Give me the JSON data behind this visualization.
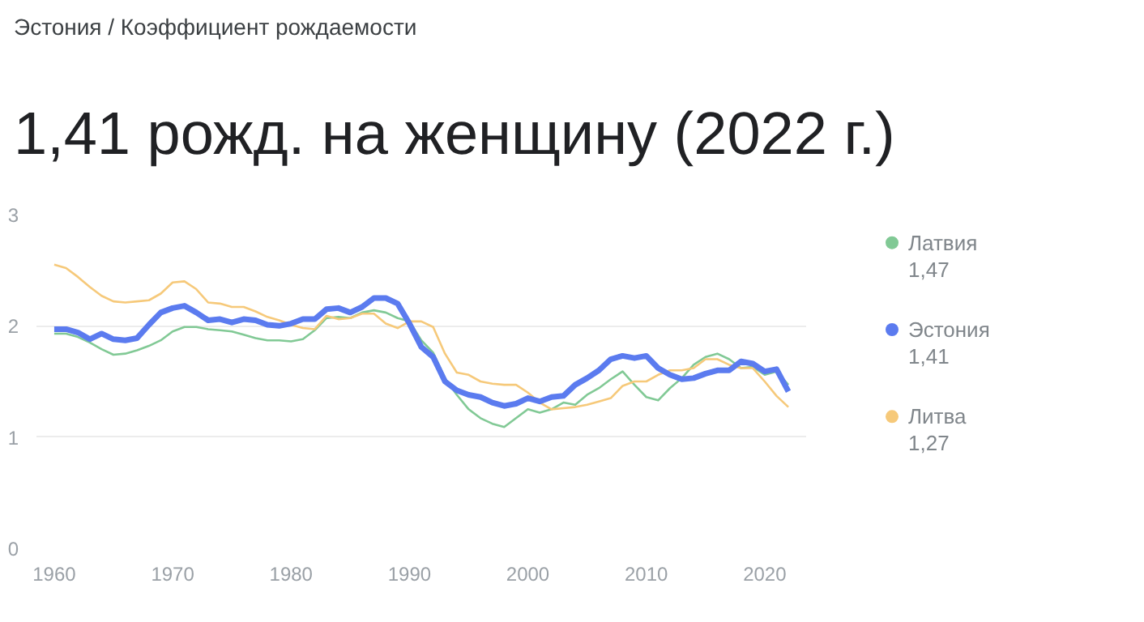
{
  "chart_data": {
    "type": "line",
    "subtitle": "Эстония / Коэффициент рождаемости",
    "title": "1,41 рожд. на женщину (2022 г.)",
    "x": [
      1960,
      1961,
      1962,
      1963,
      1964,
      1965,
      1966,
      1967,
      1968,
      1969,
      1970,
      1971,
      1972,
      1973,
      1974,
      1975,
      1976,
      1977,
      1978,
      1979,
      1980,
      1981,
      1982,
      1983,
      1984,
      1985,
      1986,
      1987,
      1988,
      1989,
      1990,
      1991,
      1992,
      1993,
      1994,
      1995,
      1996,
      1997,
      1998,
      1999,
      2000,
      2001,
      2002,
      2003,
      2004,
      2005,
      2006,
      2007,
      2008,
      2009,
      2010,
      2011,
      2012,
      2013,
      2014,
      2015,
      2016,
      2017,
      2018,
      2019,
      2020,
      2021,
      2022
    ],
    "series": [
      {
        "name": "Латвия",
        "color": "#81c995",
        "values": [
          1.93,
          1.93,
          1.9,
          1.85,
          1.79,
          1.74,
          1.75,
          1.78,
          1.82,
          1.87,
          1.95,
          1.99,
          1.99,
          1.97,
          1.96,
          1.95,
          1.92,
          1.89,
          1.87,
          1.87,
          1.86,
          1.88,
          1.96,
          2.07,
          2.08,
          2.07,
          2.12,
          2.14,
          2.12,
          2.07,
          2.04,
          1.87,
          1.76,
          1.53,
          1.38,
          1.25,
          1.17,
          1.12,
          1.09,
          1.17,
          1.25,
          1.22,
          1.25,
          1.31,
          1.29,
          1.38,
          1.44,
          1.52,
          1.59,
          1.47,
          1.36,
          1.33,
          1.44,
          1.53,
          1.65,
          1.72,
          1.75,
          1.7,
          1.62,
          1.63,
          1.56,
          1.59,
          1.47
        ]
      },
      {
        "name": "Эстония",
        "color": "#5b7bef",
        "values": [
          1.97,
          1.97,
          1.94,
          1.88,
          1.93,
          1.88,
          1.87,
          1.89,
          2.01,
          2.12,
          2.16,
          2.18,
          2.12,
          2.05,
          2.06,
          2.03,
          2.06,
          2.05,
          2.01,
          2.0,
          2.02,
          2.06,
          2.06,
          2.15,
          2.16,
          2.12,
          2.17,
          2.25,
          2.25,
          2.2,
          2.02,
          1.81,
          1.72,
          1.5,
          1.42,
          1.38,
          1.36,
          1.31,
          1.28,
          1.3,
          1.35,
          1.32,
          1.36,
          1.37,
          1.47,
          1.53,
          1.6,
          1.7,
          1.73,
          1.71,
          1.73,
          1.62,
          1.56,
          1.52,
          1.53,
          1.57,
          1.6,
          1.6,
          1.68,
          1.66,
          1.59,
          1.61,
          1.41
        ]
      },
      {
        "name": "Литва",
        "color": "#f6c97a",
        "values": [
          2.55,
          2.52,
          2.44,
          2.35,
          2.27,
          2.22,
          2.21,
          2.22,
          2.23,
          2.29,
          2.39,
          2.4,
          2.33,
          2.21,
          2.2,
          2.17,
          2.17,
          2.13,
          2.08,
          2.05,
          2.01,
          1.98,
          1.97,
          2.09,
          2.06,
          2.07,
          2.11,
          2.11,
          2.02,
          1.98,
          2.04,
          2.04,
          1.99,
          1.75,
          1.58,
          1.56,
          1.5,
          1.48,
          1.47,
          1.47,
          1.4,
          1.31,
          1.25,
          1.26,
          1.27,
          1.29,
          1.32,
          1.35,
          1.46,
          1.5,
          1.5,
          1.56,
          1.6,
          1.6,
          1.62,
          1.7,
          1.7,
          1.65,
          1.62,
          1.62,
          1.5,
          1.37,
          1.27
        ]
      }
    ],
    "annotations": [
      "1,47",
      "1,41",
      "1,27"
    ],
    "xlim": [
      1958.5,
      2023.5
    ],
    "xticks": [
      1960,
      1970,
      1980,
      1990,
      2000,
      2010,
      2020
    ],
    "ylim": [
      0,
      3
    ],
    "yticks": [
      0,
      1,
      2,
      3
    ],
    "grid": "y",
    "legend": "right"
  }
}
